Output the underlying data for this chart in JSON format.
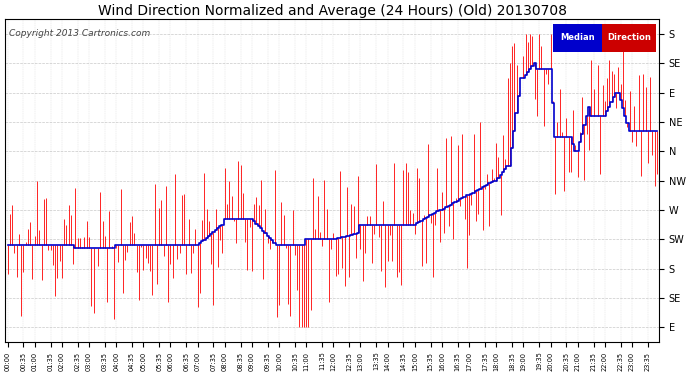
{
  "title": "Wind Direction Normalized and Average (24 Hours) (Old) 20130708",
  "copyright": "Copyright 2013 Cartronics.com",
  "ytick_labels": [
    "S",
    "SE",
    "E",
    "NE",
    "N",
    "NW",
    "W",
    "SW",
    "S",
    "SE",
    "E"
  ],
  "ytick_values": [
    0,
    1,
    2,
    3,
    4,
    5,
    6,
    7,
    8,
    9,
    10
  ],
  "background_color": "#ffffff",
  "grid_color": "#bbbbbb",
  "bar_color": "#ff0000",
  "line_color": "#0000cc",
  "title_fontsize": 10,
  "copyright_fontsize": 6.5,
  "figwidth": 6.9,
  "figheight": 3.75,
  "dpi": 100
}
